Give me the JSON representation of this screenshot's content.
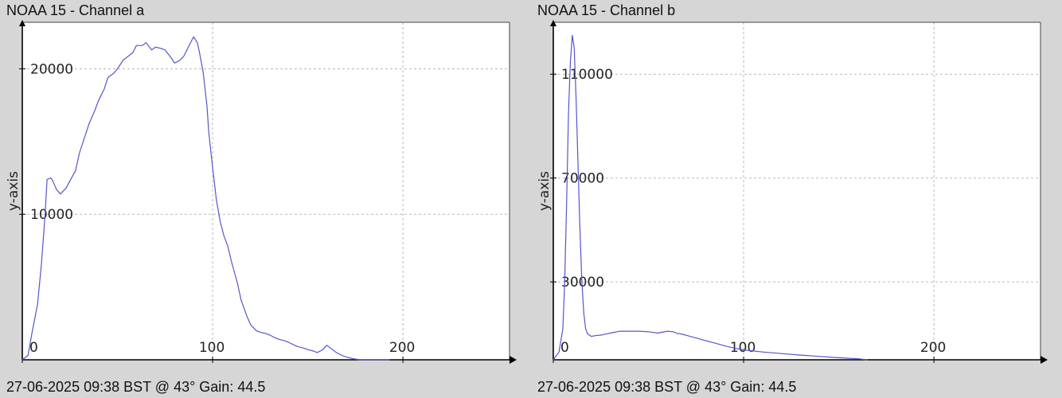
{
  "panels": [
    {
      "title": "NOAA 15 - Channel a",
      "footer": "27-06-2025 09:38 BST @ 43° Gain: 44.5"
    },
    {
      "title": "NOAA 15 - Channel b",
      "footer": "27-06-2025 09:38 BST @ 43° Gain: 44.5"
    }
  ],
  "chart_data": [
    {
      "type": "line",
      "title": "NOAA 15 - Channel a",
      "xlabel": "",
      "ylabel": "y-axis",
      "xlim": [
        0,
        256
      ],
      "ylim": [
        0,
        23200
      ],
      "xticks": [
        0,
        100,
        200
      ],
      "yticks": [
        10000,
        20000
      ],
      "grid": true,
      "line_color": "#5555cc",
      "series": [
        {
          "x": [
            0,
            3,
            5,
            8,
            10,
            12,
            13,
            15,
            16,
            18,
            20,
            23,
            25,
            28,
            30,
            33,
            35,
            38,
            40,
            43,
            45,
            48,
            50,
            53,
            55,
            58,
            60,
            63,
            65,
            68,
            70,
            73,
            75,
            78,
            80,
            83,
            85,
            88,
            90,
            92,
            93,
            95,
            97,
            98,
            100,
            102,
            104,
            106,
            108,
            110,
            113,
            115,
            118,
            120,
            123,
            125,
            128,
            130,
            133,
            135,
            138,
            140,
            143,
            145,
            148,
            150,
            153,
            155,
            158,
            160,
            163,
            165,
            168,
            170,
            173,
            175,
            178,
            180,
            183,
            185,
            188,
            190,
            193
          ],
          "y": [
            0,
            300,
            1800,
            3800,
            6500,
            10000,
            12400,
            12500,
            12300,
            11700,
            11400,
            11800,
            12300,
            13000,
            14200,
            15400,
            16200,
            17100,
            17800,
            18600,
            19400,
            19700,
            20000,
            20600,
            20800,
            21100,
            21600,
            21600,
            21800,
            21300,
            21500,
            21400,
            21300,
            20800,
            20400,
            20600,
            20900,
            21700,
            22200,
            21800,
            21200,
            19800,
            17500,
            15600,
            13200,
            11000,
            9500,
            8500,
            7800,
            6700,
            5300,
            4100,
            3000,
            2400,
            2000,
            1900,
            1800,
            1700,
            1500,
            1400,
            1300,
            1200,
            1000,
            900,
            800,
            700,
            600,
            500,
            700,
            1000,
            700,
            500,
            300,
            200,
            100,
            50,
            0,
            0,
            0,
            0,
            0,
            0,
            0
          ]
        }
      ]
    },
    {
      "type": "line",
      "title": "NOAA 15 - Channel b",
      "xlabel": "",
      "ylabel": "y-axis",
      "xlim": [
        0,
        256
      ],
      "ylim": [
        0,
        130000
      ],
      "xticks": [
        0,
        100,
        200
      ],
      "yticks": [
        30000,
        70000,
        110000
      ],
      "grid": true,
      "line_color": "#5555cc",
      "series": [
        {
          "x": [
            0,
            3,
            5,
            6,
            7,
            8,
            9,
            10,
            11,
            12,
            13,
            14,
            15,
            16,
            17,
            18,
            19,
            20,
            22,
            25,
            28,
            30,
            33,
            35,
            38,
            40,
            45,
            50,
            55,
            60,
            63,
            65,
            68,
            70,
            75,
            80,
            85,
            90,
            95,
            100,
            110,
            120,
            130,
            140,
            150,
            160,
            165
          ],
          "y": [
            0,
            3000,
            12000,
            30000,
            60000,
            95000,
            115000,
            125000,
            120000,
            100000,
            75000,
            50000,
            30000,
            18000,
            12000,
            10000,
            9500,
            9000,
            9300,
            9500,
            10000,
            10300,
            10700,
            11000,
            11000,
            11000,
            11000,
            10800,
            10300,
            11000,
            10800,
            10200,
            9800,
            9400,
            8400,
            7400,
            6400,
            5400,
            4500,
            3800,
            3000,
            2400,
            1800,
            1300,
            800,
            400,
            0
          ]
        }
      ]
    }
  ]
}
